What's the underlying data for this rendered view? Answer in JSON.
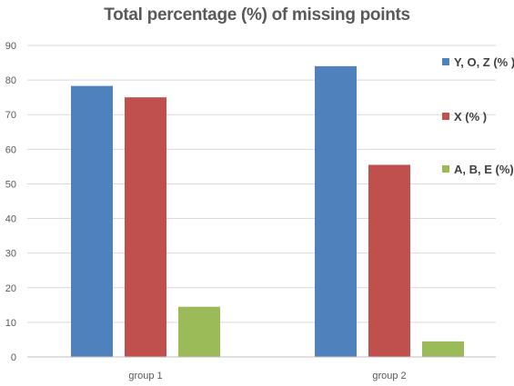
{
  "chart_data": {
    "type": "bar",
    "title": "Total percentage (%) of missing points",
    "xlabel": "",
    "ylabel": "",
    "categories": [
      "group 1",
      "group 2"
    ],
    "series": [
      {
        "name": "Y, O, Z (% )",
        "color": "#4F81BD",
        "values": [
          78.3,
          84.0
        ]
      },
      {
        "name": "X (% )",
        "color": "#C0504D",
        "values": [
          75.0,
          55.5
        ]
      },
      {
        "name": "A, B, E (%)",
        "color": "#9BBB59",
        "values": [
          14.5,
          4.5
        ]
      }
    ],
    "ylim": [
      0,
      90
    ],
    "yticks": [
      0,
      10,
      20,
      30,
      40,
      50,
      60,
      70,
      80,
      90
    ],
    "grid": true,
    "legend_position": "right"
  }
}
